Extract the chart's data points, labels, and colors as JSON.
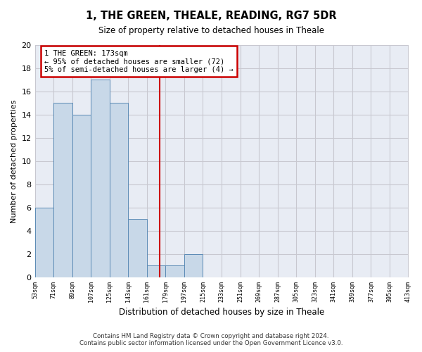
{
  "title": "1, THE GREEN, THEALE, READING, RG7 5DR",
  "subtitle": "Size of property relative to detached houses in Theale",
  "xlabel": "Distribution of detached houses by size in Theale",
  "ylabel": "Number of detached properties",
  "bar_edges": [
    53,
    71,
    89,
    107,
    125,
    143,
    161,
    179,
    197,
    215,
    233,
    251,
    269,
    287,
    305,
    323,
    341,
    359,
    377,
    395,
    413
  ],
  "bar_heights": [
    6,
    15,
    14,
    17,
    15,
    5,
    1,
    1,
    2,
    0,
    0,
    0,
    0,
    0,
    0,
    0,
    0,
    0,
    0,
    0
  ],
  "bar_color": "#c8d8e8",
  "bar_edge_color": "#5b8ab5",
  "vline_x": 173,
  "vline_color": "#cc0000",
  "annotation_text": "1 THE GREEN: 173sqm\n← 95% of detached houses are smaller (72)\n5% of semi-detached houses are larger (4) →",
  "annotation_box_color": "#cc0000",
  "ylim": [
    0,
    20
  ],
  "yticks": [
    0,
    2,
    4,
    6,
    8,
    10,
    12,
    14,
    16,
    18,
    20
  ],
  "grid_color": "#c8c8d0",
  "bg_color": "#e8ecf4",
  "footer_line1": "Contains HM Land Registry data © Crown copyright and database right 2024.",
  "footer_line2": "Contains public sector information licensed under the Open Government Licence v3.0."
}
